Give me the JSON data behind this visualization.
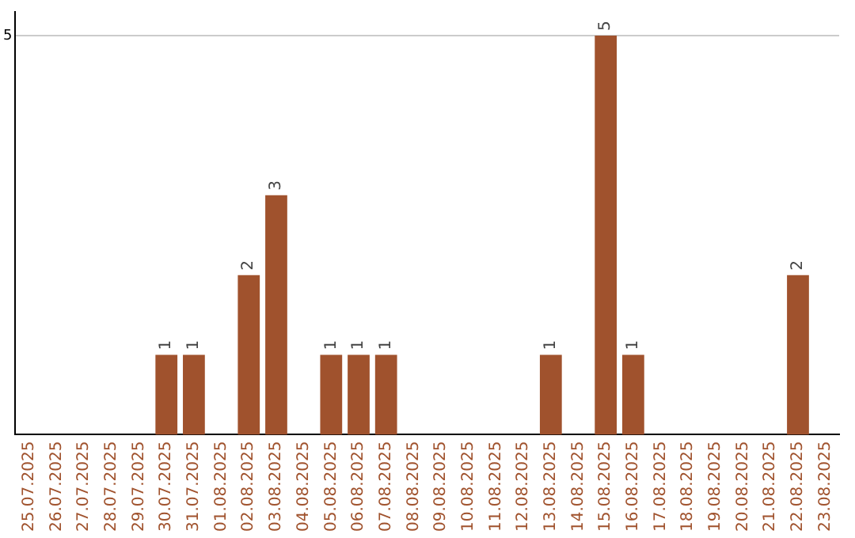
{
  "chart_data": {
    "type": "bar",
    "categories": [
      "25.07.2025",
      "26.07.2025",
      "27.07.2025",
      "28.07.2025",
      "29.07.2025",
      "30.07.2025",
      "31.07.2025",
      "01.08.2025",
      "02.08.2025",
      "03.08.2025",
      "04.08.2025",
      "05.08.2025",
      "06.08.2025",
      "07.08.2025",
      "08.08.2025",
      "09.08.2025",
      "10.08.2025",
      "11.08.2025",
      "12.08.2025",
      "13.08.2025",
      "14.08.2025",
      "15.08.2025",
      "16.08.2025",
      "17.08.2025",
      "18.08.2025",
      "19.08.2025",
      "20.08.2025",
      "21.08.2025",
      "22.08.2025",
      "23.08.2025"
    ],
    "values": [
      0,
      0,
      0,
      0,
      0,
      1,
      1,
      0,
      2,
      3,
      0,
      1,
      1,
      1,
      0,
      0,
      0,
      0,
      0,
      1,
      0,
      5,
      1,
      0,
      0,
      0,
      0,
      0,
      2,
      0
    ],
    "value_labels": [
      null,
      null,
      null,
      null,
      null,
      "1",
      "1",
      null,
      "2",
      "3",
      null,
      "1",
      "1",
      "1",
      null,
      null,
      null,
      null,
      null,
      "1",
      null,
      "5",
      "1",
      null,
      null,
      null,
      null,
      null,
      "2",
      null
    ],
    "color": "#a0522d",
    "ylim": [
      0,
      5.3
    ],
    "yticks": [
      5
    ],
    "grid": "y",
    "legend": false
  }
}
